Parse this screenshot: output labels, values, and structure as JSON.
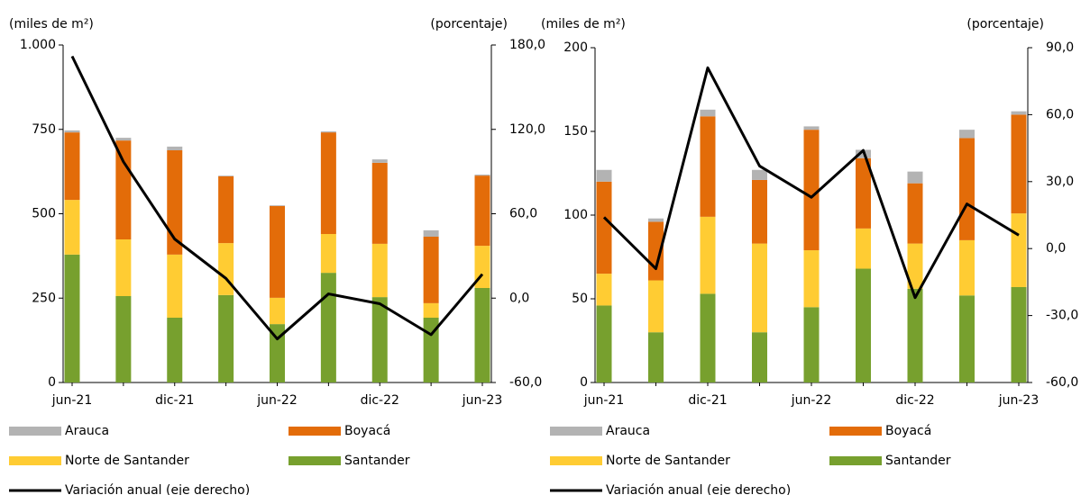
{
  "chart_data": [
    {
      "type": "bar",
      "stacked": true,
      "y_label": "(miles de m²)",
      "y2_label": "(porcentaje)",
      "categories": [
        "jun-21",
        null,
        "dic-21",
        null,
        "jun-22",
        null,
        "dic-22",
        null,
        "jun-23"
      ],
      "ylim": [
        0,
        1000
      ],
      "yticks": [
        0,
        250,
        500,
        750,
        {
          "value": 1000,
          "label": "1.000"
        }
      ],
      "y2lim": [
        -60,
        180
      ],
      "y2ticks": [
        {
          "value": -60,
          "label": "-60,0"
        },
        {
          "value": 0,
          "label": "0,0"
        },
        {
          "value": 60,
          "label": "60,0"
        },
        {
          "value": 120,
          "label": "120,0"
        },
        {
          "value": 180,
          "label": "180,0"
        }
      ],
      "series": [
        {
          "name": "Santander",
          "color": "#77a02e",
          "values": [
            379,
            256,
            192,
            259,
            173,
            325,
            253,
            192,
            280
          ]
        },
        {
          "name": "Norte de Santander",
          "color": "#ffcc33",
          "values": [
            162,
            168,
            187,
            154,
            78,
            115,
            158,
            43,
            125
          ]
        },
        {
          "name": "Boyacá",
          "color": "#e36c09",
          "values": [
            200,
            293,
            309,
            198,
            272,
            301,
            240,
            197,
            208
          ]
        },
        {
          "name": "Arauca",
          "color": "#b3b3b3",
          "values": [
            6,
            8,
            11,
            2,
            2,
            3,
            10,
            19,
            3
          ]
        },
        {
          "name": "Variación anual (eje derecho)",
          "type": "line",
          "axis": "y2",
          "color": "#000000",
          "values": [
            172,
            97,
            42,
            14,
            -29,
            3,
            -4,
            -26,
            17
          ]
        }
      ]
    },
    {
      "type": "bar",
      "stacked": true,
      "y_label": "(miles de m²)",
      "y2_label": "(porcentaje)",
      "categories": [
        "jun-21",
        null,
        "dic-21",
        null,
        "jun-22",
        null,
        "dic-22",
        null,
        "jun-23"
      ],
      "ylim": [
        0,
        200
      ],
      "yticks": [
        0,
        50,
        100,
        150,
        200
      ],
      "y2lim": [
        -60,
        90
      ],
      "y2ticks": [
        {
          "value": -60,
          "label": "-60,0"
        },
        {
          "value": -30,
          "label": "-30,0"
        },
        {
          "value": 0,
          "label": "0,0"
        },
        {
          "value": 30,
          "label": "30,0"
        },
        {
          "value": 60,
          "label": "60,0"
        },
        {
          "value": 90,
          "label": "90,0"
        }
      ],
      "series": [
        {
          "name": "Santander",
          "color": "#77a02e",
          "values": [
            46,
            30,
            53,
            30,
            45,
            68,
            56,
            52,
            57
          ]
        },
        {
          "name": "Norte de Santander",
          "color": "#ffcc33",
          "values": [
            19,
            31,
            46,
            53,
            34,
            24,
            27,
            33,
            44
          ]
        },
        {
          "name": "Boyacá",
          "color": "#e36c09",
          "values": [
            55,
            35,
            60,
            38,
            72,
            42,
            36,
            61,
            59
          ]
        },
        {
          "name": "Arauca",
          "color": "#b3b3b3",
          "values": [
            7,
            2,
            4,
            6,
            2,
            5,
            7,
            5,
            2
          ]
        },
        {
          "name": "Variación anual (eje derecho)",
          "type": "line",
          "axis": "y2",
          "color": "#000000",
          "values": [
            14,
            -9,
            81,
            37,
            23,
            44,
            -22,
            20,
            6
          ]
        }
      ]
    }
  ]
}
